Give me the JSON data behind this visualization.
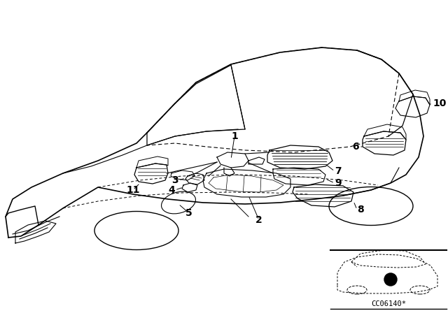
{
  "bg_color": "#ffffff",
  "line_color": "#000000",
  "diagram_code": "CC06140*"
}
